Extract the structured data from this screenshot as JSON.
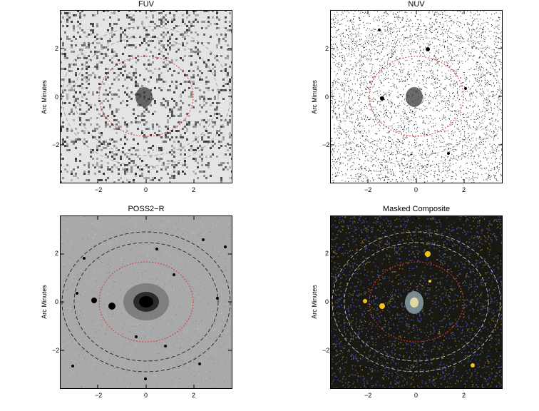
{
  "panels": [
    {
      "id": "fuv",
      "title": "FUV",
      "ylabel": "Arc Minutes",
      "style": "fuv",
      "xticks": [
        "−2",
        "0",
        "2"
      ],
      "yticks": [
        "2",
        "0",
        "−2"
      ]
    },
    {
      "id": "nuv",
      "title": "NUV",
      "ylabel": "Arc Minutes",
      "style": "nuv",
      "xticks": [
        "−2",
        "0",
        "2"
      ],
      "yticks": [
        "2",
        "0",
        "−2"
      ]
    },
    {
      "id": "poss",
      "title": "POSS2−R",
      "ylabel": "Arc Minutes",
      "style": "poss",
      "xticks": [
        "−2",
        "0",
        "2"
      ],
      "yticks": [
        "2",
        "0",
        "−2"
      ]
    },
    {
      "id": "comp",
      "title": "Masked Composite",
      "ylabel": "Arc Minutes",
      "style": "comp",
      "xticks": [
        "−2",
        "0",
        "2"
      ],
      "yticks": [
        "2",
        "0",
        "−2"
      ]
    }
  ],
  "colors": {
    "red_ellipse": "#d83a3a",
    "frame": "#000000",
    "composite_bg": "#1a1812",
    "composite_star": "#f2c419",
    "composite_blue": "#3a52b0"
  }
}
